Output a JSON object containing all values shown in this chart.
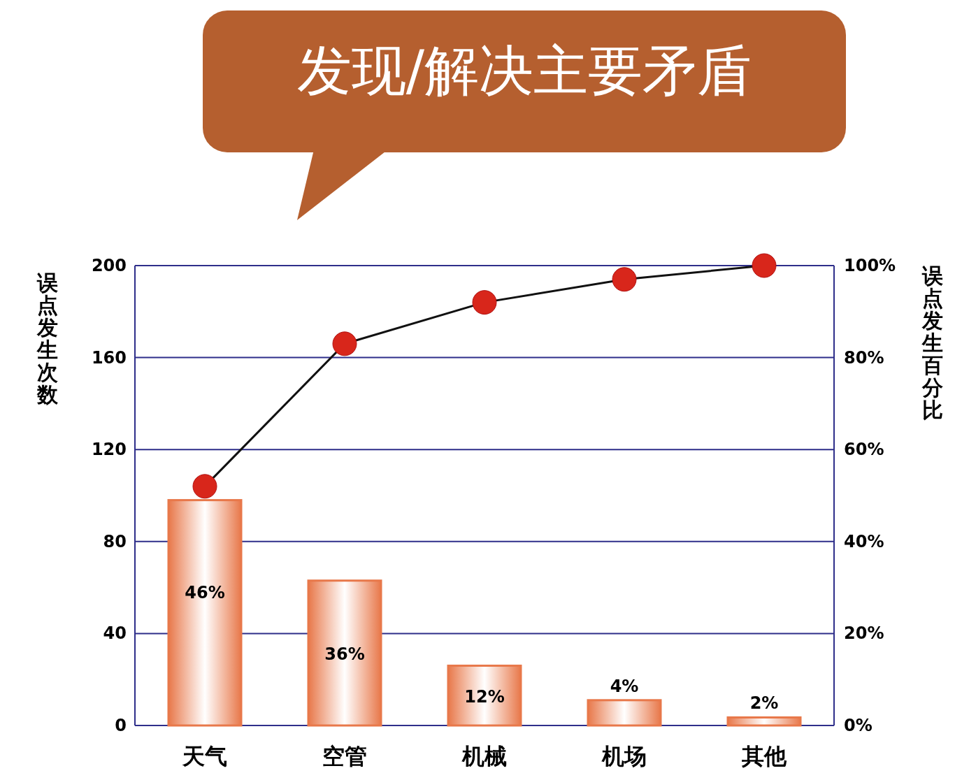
{
  "chart_data": {
    "type": "bar",
    "title": "发现/解决主要矛盾",
    "ylabel": "误点发生次数",
    "y2label": "误点发生百分比",
    "categories": [
      "天气",
      "空管",
      "机械",
      "机场",
      "其他"
    ],
    "series": [
      {
        "type": "bar",
        "color": "#e8784a",
        "values": [
          98,
          63,
          26,
          11,
          3.5
        ]
      },
      {
        "type": "line",
        "axis": "y2",
        "color": "#d8261b",
        "values": [
          52,
          83,
          92,
          97,
          100
        ],
        "marker": "circle",
        "line_style": "solid"
      }
    ],
    "ylim": [
      0,
      200
    ],
    "yticks": [
      0,
      40,
      80,
      120,
      160,
      200
    ],
    "y2lim": [
      0,
      100
    ],
    "y2ticks": [
      {
        "value": 0,
        "label": "0%"
      },
      {
        "value": 20,
        "label": "20%"
      },
      {
        "value": 40,
        "label": "40%"
      },
      {
        "value": 60,
        "label": "60%"
      },
      {
        "value": 80,
        "label": "80%"
      },
      {
        "value": 100,
        "label": "100%"
      }
    ],
    "annotations": [
      "46%",
      "36%",
      "12%",
      "4%",
      "2%"
    ],
    "grid": "y"
  }
}
